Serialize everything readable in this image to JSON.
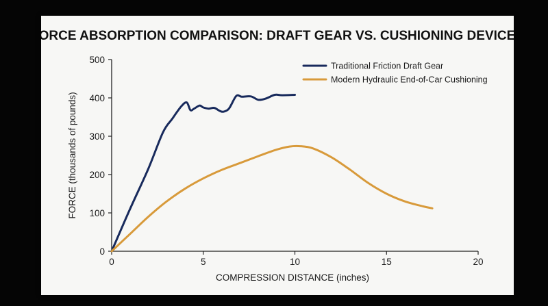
{
  "colors": {
    "background": "#050505",
    "card": "#f7f7f5",
    "axis": "#222222",
    "series_1": "#182a5c",
    "series_2": "#d89a3a"
  },
  "chart_data": {
    "type": "line",
    "title": "FORCE ABSORPTION COMPARISON: DRAFT GEAR VS. CUSHIONING DEVICES",
    "xlabel": "COMPRESSION DISTANCE (inches)",
    "ylabel": "FORCE (thousands of pounds)",
    "xlim": [
      0,
      20
    ],
    "ylim": [
      0,
      500
    ],
    "x_ticks": [
      "0",
      "5",
      "10",
      "15",
      "20"
    ],
    "y_ticks": [
      "0",
      "100",
      "200",
      "300",
      "400",
      "500"
    ],
    "grid": false,
    "legend_position": "top-right",
    "series": [
      {
        "name": "Traditional Friction Draft Gear",
        "color": "#182a5c",
        "points": [
          [
            0,
            0
          ],
          [
            1,
            110
          ],
          [
            2,
            215
          ],
          [
            2.8,
            310
          ],
          [
            3.3,
            345
          ],
          [
            3.8,
            378
          ],
          [
            4.1,
            388
          ],
          [
            4.3,
            368
          ],
          [
            4.5,
            372
          ],
          [
            4.8,
            380
          ],
          [
            5.0,
            375
          ],
          [
            5.3,
            372
          ],
          [
            5.6,
            374
          ],
          [
            5.9,
            366
          ],
          [
            6.1,
            364
          ],
          [
            6.4,
            372
          ],
          [
            6.8,
            405
          ],
          [
            7.1,
            403
          ],
          [
            7.6,
            404
          ],
          [
            8.0,
            395
          ],
          [
            8.4,
            398
          ],
          [
            8.9,
            408
          ],
          [
            9.3,
            407
          ],
          [
            10,
            408
          ]
        ]
      },
      {
        "name": "Modern Hydraulic End-of-Car Cushioning",
        "color": "#d89a3a",
        "points": [
          [
            0,
            0
          ],
          [
            1,
            45
          ],
          [
            2,
            90
          ],
          [
            3,
            130
          ],
          [
            4,
            163
          ],
          [
            5,
            190
          ],
          [
            6,
            212
          ],
          [
            7,
            230
          ],
          [
            8,
            248
          ],
          [
            9,
            265
          ],
          [
            9.7,
            273
          ],
          [
            10.3,
            274
          ],
          [
            11,
            268
          ],
          [
            12,
            245
          ],
          [
            13,
            213
          ],
          [
            14,
            178
          ],
          [
            15,
            150
          ],
          [
            16,
            130
          ],
          [
            17,
            117
          ],
          [
            17.5,
            112
          ]
        ]
      }
    ]
  }
}
